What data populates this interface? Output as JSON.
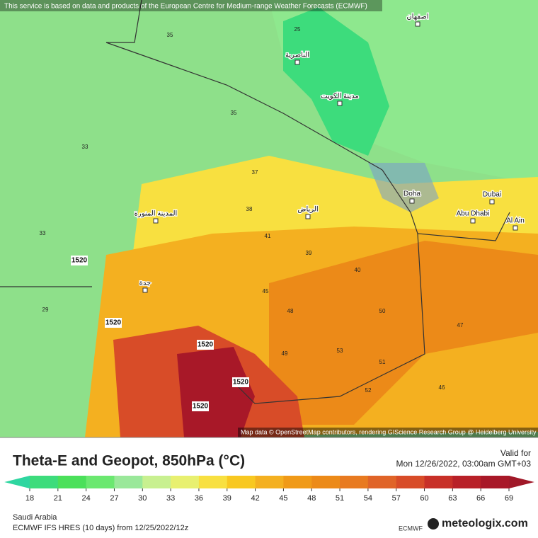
{
  "header_note": "This service is based on data and products of the European Centre for Medium-range Weather Forecasts (ECMWF)",
  "attribution": "Map data © OpenStreetMap contributors, rendering GIScience Research Group @ Heidelberg University",
  "places": [
    {
      "label": "الرياض"
    },
    {
      "label": "المدينة المنورة"
    },
    {
      "label": "جدة"
    },
    {
      "label": "مدينة الكويت"
    },
    {
      "label": "Doha"
    },
    {
      "label": "Abu Dhabi"
    },
    {
      "label": "Dubai"
    },
    {
      "label": "Al Ain"
    },
    {
      "label": "الناصرية"
    },
    {
      "label": "اصفهان"
    }
  ],
  "contour_labels": [
    "1520",
    "1520",
    "1520",
    "1520",
    "1520"
  ],
  "values_on_map": [
    "35",
    "33",
    "33",
    "35",
    "37",
    "38",
    "41",
    "45",
    "48",
    "50",
    "51",
    "53",
    "47",
    "25",
    "29",
    "39",
    "40",
    "52",
    "46",
    "49"
  ],
  "title": "Theta-E and Geopot, 850hPa (°C)",
  "valid_label": "Valid for",
  "valid_time": "Mon 12/26/2022, 03:00am GMT+03",
  "colorbar": {
    "ticks": [
      18,
      21,
      24,
      27,
      30,
      33,
      36,
      39,
      42,
      45,
      48,
      51,
      54,
      57,
      60,
      63,
      66,
      69
    ],
    "colors": [
      "#2ed6a0",
      "#3ddc7c",
      "#4be05a",
      "#6be870",
      "#9ae89a",
      "#c8f090",
      "#e8f070",
      "#f8e040",
      "#f8c820",
      "#f4b020",
      "#f09a18",
      "#ec8a18",
      "#e87a20",
      "#e06428",
      "#d84c28",
      "#c83028",
      "#b82028",
      "#a81828",
      "#a01828"
    ]
  },
  "region": "Saudi Arabia",
  "model": "ECMWF IFS HRES (10 days) from  12/25/2022/12z",
  "ecmwf": "ECMWF",
  "brand": "meteologix.com"
}
